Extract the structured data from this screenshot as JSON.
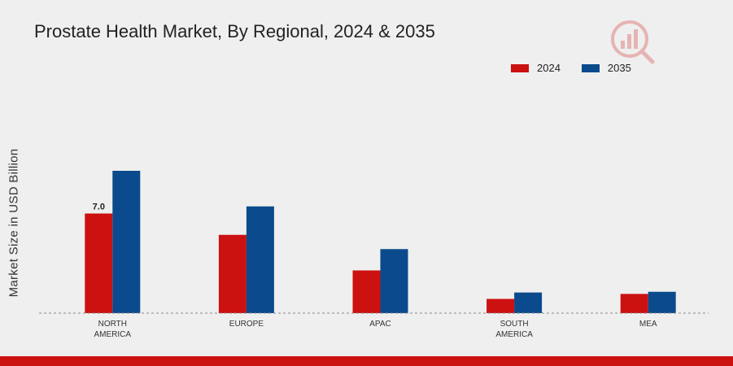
{
  "colors": {
    "series_2024": "#cc1111",
    "series_2035": "#0b4a8c",
    "background": "#efefef",
    "accent_bar": "#cc1111"
  },
  "chart_data": {
    "type": "bar",
    "title": "Prostate Health Market, By Regional, 2024 & 2035",
    "xlabel": "",
    "ylabel": "Market Size in USD Billion",
    "categories": [
      "NORTH\nAMERICA",
      "EUROPE",
      "APAC",
      "SOUTH\nAMERICA",
      "MEA"
    ],
    "series": [
      {
        "name": "2024",
        "color": "#cc1111",
        "values": [
          7.0,
          5.5,
          3.0,
          1.0,
          1.35
        ]
      },
      {
        "name": "2035",
        "color": "#0b4a8c",
        "values": [
          10.0,
          7.5,
          4.5,
          1.45,
          1.5
        ]
      }
    ],
    "data_labels": [
      {
        "series": 0,
        "category": 0,
        "text": "7.0"
      }
    ],
    "ylim": [
      0,
      16
    ],
    "grid": false,
    "legend_position": "top-right"
  }
}
